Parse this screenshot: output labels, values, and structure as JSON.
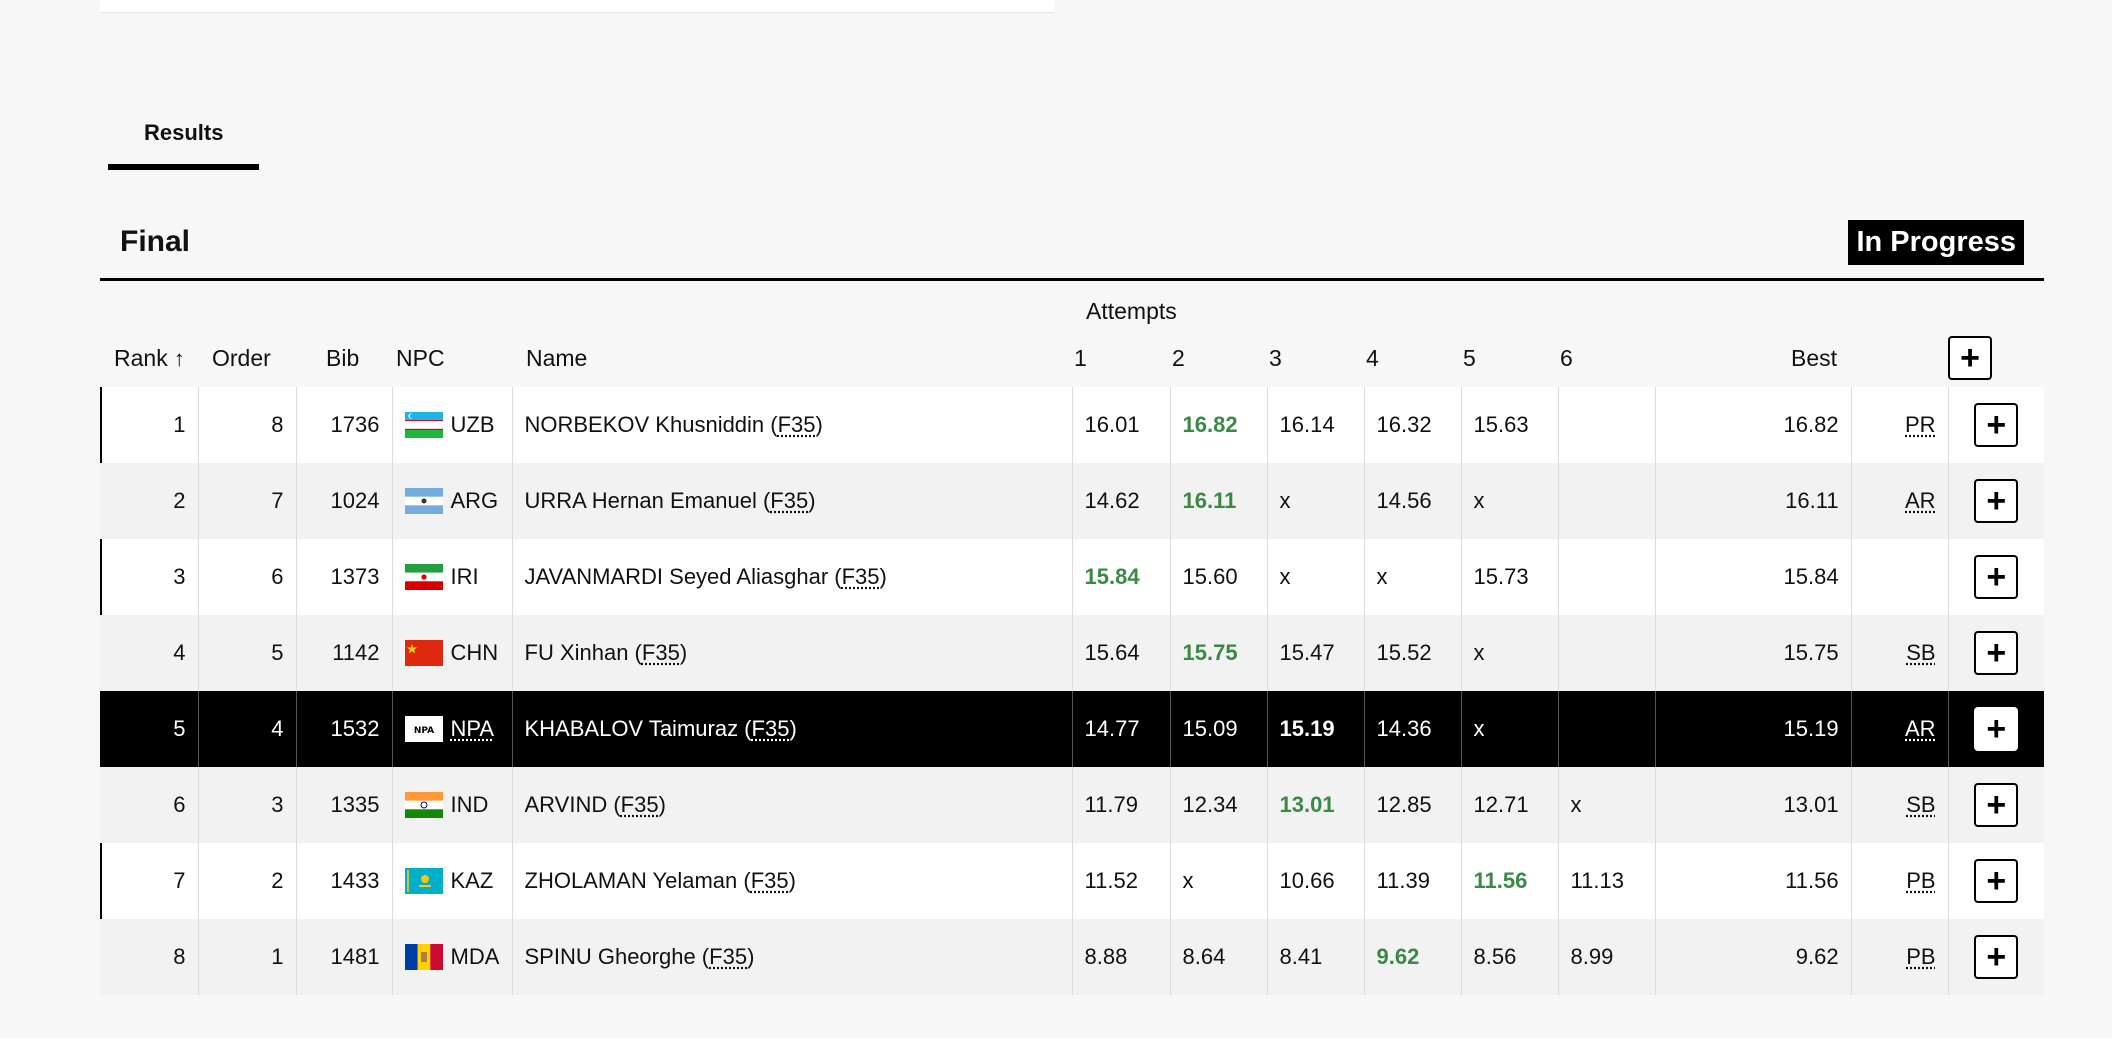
{
  "tabs": [
    {
      "label": "Results"
    }
  ],
  "header": {
    "title": "Final",
    "status": "In Progress"
  },
  "table": {
    "attempts_label": "Attempts",
    "columns": {
      "rank": "Rank",
      "order": "Order",
      "bib": "Bib",
      "npc": "NPC",
      "name": "Name",
      "a1": "1",
      "a2": "2",
      "a3": "3",
      "a4": "4",
      "a5": "5",
      "a6": "6",
      "best": "Best"
    },
    "expand_label": "+",
    "rows": [
      {
        "rank": "1",
        "order": "8",
        "bib": "1736",
        "npc": "UZB",
        "flag": "uzb",
        "name": "NORBEKOV Khusniddin (",
        "class": "F35",
        "name_end": ")",
        "attempts": [
          "16.01",
          "16.82",
          "16.14",
          "16.32",
          "15.63",
          ""
        ],
        "best_index": 1,
        "best": "16.82",
        "record": "PR",
        "record_abbr": true
      },
      {
        "rank": "2",
        "order": "7",
        "bib": "1024",
        "npc": "ARG",
        "flag": "arg",
        "name": "URRA Hernan Emanuel (",
        "class": "F35",
        "name_end": ")",
        "attempts": [
          "14.62",
          "16.11",
          "x",
          "14.56",
          "x",
          ""
        ],
        "best_index": 1,
        "best": "16.11",
        "record": "AR"
      },
      {
        "rank": "3",
        "order": "6",
        "bib": "1373",
        "npc": "IRI",
        "flag": "iri",
        "name": "JAVANMARDI Seyed Aliasghar (",
        "class": "F35",
        "name_end": ")",
        "attempts": [
          "15.84",
          "15.60",
          "x",
          "x",
          "15.73",
          ""
        ],
        "best_index": 0,
        "best": "15.84",
        "record": ""
      },
      {
        "rank": "4",
        "order": "5",
        "bib": "1142",
        "npc": "CHN",
        "flag": "chn",
        "name": "FU Xinhan (",
        "class": "F35",
        "name_end": ")",
        "attempts": [
          "15.64",
          "15.75",
          "15.47",
          "15.52",
          "x",
          ""
        ],
        "best_index": 1,
        "best": "15.75",
        "record": "SB"
      },
      {
        "rank": "5",
        "order": "4",
        "bib": "1532",
        "npc": "NPA",
        "flag": "npa",
        "name": "KHABALOV Taimuraz (",
        "class": "F35",
        "name_end": ")",
        "attempts": [
          "14.77",
          "15.09",
          "15.19",
          "14.36",
          "x",
          ""
        ],
        "best_index": 2,
        "best": "15.19",
        "record": "AR",
        "highlight": true
      },
      {
        "rank": "6",
        "order": "3",
        "bib": "1335",
        "npc": "IND",
        "flag": "ind",
        "name": "ARVIND (",
        "class": "F35",
        "name_end": ")",
        "attempts": [
          "11.79",
          "12.34",
          "13.01",
          "12.85",
          "12.71",
          "x"
        ],
        "best_index": 2,
        "best": "13.01",
        "record": "SB"
      },
      {
        "rank": "7",
        "order": "2",
        "bib": "1433",
        "npc": "KAZ",
        "flag": "kaz",
        "name": "ZHOLAMAN Yelaman (",
        "class": "F35",
        "name_end": ")",
        "attempts": [
          "11.52",
          "x",
          "10.66",
          "11.39",
          "11.56",
          "11.13"
        ],
        "best_index": 4,
        "best": "11.56",
        "record": "PB"
      },
      {
        "rank": "8",
        "order": "1",
        "bib": "1481",
        "npc": "MDA",
        "flag": "mda",
        "name": "SPINU Gheorghe (",
        "class": "F35",
        "name_end": ")",
        "attempts": [
          "8.88",
          "8.64",
          "8.41",
          "9.62",
          "8.56",
          "8.99"
        ],
        "best_index": 3,
        "best": "9.62",
        "record": "PB"
      }
    ]
  },
  "colors": {
    "best_attempt": "#3a8a46",
    "highlight_row": "#000000",
    "badge_bg": "#000000"
  }
}
